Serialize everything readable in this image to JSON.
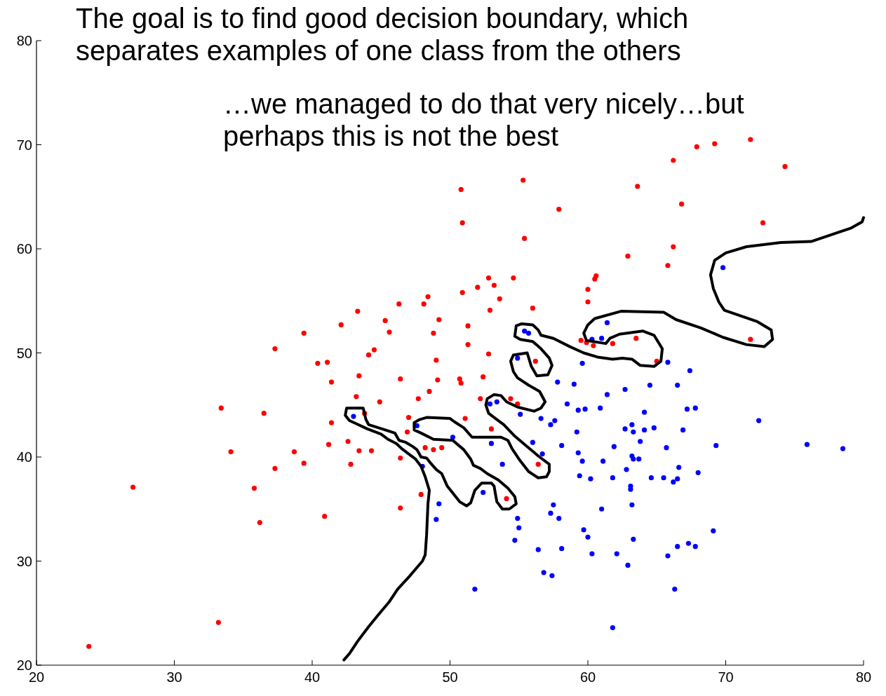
{
  "chart_data": {
    "type": "scatter",
    "marker": "circle",
    "grid": false,
    "xlim": [
      20,
      80
    ],
    "ylim": [
      20,
      80
    ],
    "xticks": [
      20,
      30,
      40,
      50,
      60,
      70,
      80
    ],
    "yticks": [
      20,
      30,
      40,
      50,
      60,
      70,
      80
    ],
    "annotations": [
      "The goal is to find good decision boundary, which separates examples of one class from the others",
      "…we managed to do that very nicely…but perhaps this is not the best"
    ],
    "series": [
      {
        "color": "#ff0000",
        "x": [
          23.8,
          27.0,
          33.2,
          33.4,
          34.1,
          35.8,
          36.2,
          36.5,
          37.3,
          37.3,
          38.7,
          39.4,
          39.4,
          40.4,
          40.9,
          41.1,
          41.2,
          41.4,
          41.4,
          42.1,
          42.6,
          42.8,
          43.2,
          43.3,
          43.4,
          43.4,
          43.8,
          44.1,
          44.3,
          44.5,
          44.9,
          45.3,
          45.6,
          46.3,
          46.4,
          46.4,
          46.4,
          47.0,
          46.9,
          47.7,
          47.9,
          48.1,
          48.2,
          48.4,
          48.5,
          48.8,
          48.8,
          49.0,
          49.1,
          49.2,
          49.4,
          50.7,
          50.8,
          50.8,
          50.9,
          50.9,
          51.3,
          51.3,
          51.1,
          52.0,
          52.2,
          52.4,
          52.8,
          52.8,
          52.9,
          53.0,
          53.2,
          53.6,
          54.4,
          54.6,
          54.9,
          54.1,
          55.3,
          55.4,
          56.0,
          56.2,
          56.4,
          57.9,
          59.5,
          59.9,
          60.4,
          61.8,
          63.5,
          65.0,
          60.0,
          60.0,
          60.5,
          60.6,
          62.9,
          65.8,
          66.2,
          72.7,
          66.8,
          63.6,
          66.2,
          67.9,
          69.2,
          71.8,
          74.3,
          71.8
        ],
        "values": [
          21.8,
          37.1,
          24.1,
          44.7,
          40.5,
          37.0,
          33.7,
          44.2,
          50.4,
          38.9,
          40.5,
          51.9,
          39.4,
          49.0,
          34.3,
          49.1,
          41.2,
          47.2,
          43.3,
          52.7,
          41.5,
          39.3,
          45.8,
          54.0,
          47.8,
          40.6,
          44.2,
          49.8,
          40.6,
          50.3,
          45.3,
          53.1,
          52.0,
          54.7,
          39.9,
          47.5,
          35.1,
          43.8,
          42.4,
          45.6,
          36.4,
          54.7,
          40.9,
          55.4,
          46.3,
          51.9,
          40.7,
          49.3,
          47.4,
          53.2,
          40.9,
          47.5,
          47.1,
          65.7,
          62.5,
          55.8,
          52.6,
          50.8,
          43.7,
          56.3,
          45.6,
          47.7,
          57.2,
          49.9,
          54.1,
          42.7,
          56.5,
          55.2,
          45.6,
          57.2,
          45.1,
          36.0,
          66.6,
          61.0,
          54.3,
          49.2,
          39.3,
          63.8,
          51.2,
          51.0,
          50.7,
          50.9,
          51.4,
          49.2,
          54.9,
          56.1,
          57.1,
          57.4,
          59.3,
          58.4,
          60.2,
          62.5,
          64.3,
          66.0,
          68.5,
          69.8,
          70.1,
          70.5,
          67.9,
          51.3
        ]
      },
      {
        "color": "#0000ff",
        "x": [
          54.9,
          59.6,
          65.8,
          67.4,
          57.8,
          59.0,
          62.7,
          64.5,
          66.5,
          61.4,
          58.5,
          59.3,
          59.8,
          60.9,
          64.1,
          67.2,
          67.8,
          55.1,
          56.6,
          57.6,
          57.3,
          59.2,
          62.7,
          63.2,
          63.3,
          64.1,
          64.8,
          66.9,
          72.4,
          63.8,
          56.0,
          58.1,
          61.9,
          65.7,
          69.3,
          75.9,
          78.5,
          56.7,
          59.3,
          59.6,
          61.1,
          63.2,
          63.3,
          63.7,
          62.8,
          66.6,
          68.0,
          59.4,
          60.2,
          61.8,
          64.6,
          65.5,
          66.5,
          66.2,
          63.1,
          63.1,
          57.5,
          63.2,
          61.0,
          57.3,
          54.9,
          57.9,
          55.0,
          59.7,
          69.1,
          60.0,
          63.3,
          54.7,
          66.5,
          67.3,
          67.8,
          58.1,
          56.4,
          60.3,
          62.1,
          65.8,
          62.9,
          56.8,
          57.4,
          66.3,
          51.8,
          61.8,
          43.0,
          47.6,
          50.2,
          52.9,
          53.4,
          53.0,
          53.8,
          48.0,
          52.4,
          49.2,
          49.0,
          55.4,
          55.7,
          61.4,
          60.3,
          61.0,
          69.8
        ],
        "values": [
          49.5,
          49.0,
          49.1,
          48.3,
          47.2,
          47.0,
          46.5,
          46.9,
          46.9,
          46.0,
          45.1,
          44.5,
          44.6,
          44.7,
          44.3,
          44.6,
          44.7,
          44.1,
          43.7,
          43.5,
          43.1,
          42.4,
          42.7,
          43.1,
          42.4,
          42.6,
          42.8,
          42.6,
          43.5,
          41.5,
          41.4,
          41.1,
          41.0,
          40.9,
          41.1,
          41.2,
          40.8,
          40.3,
          40.4,
          39.6,
          39.6,
          40.1,
          39.8,
          39.8,
          38.8,
          39.0,
          38.5,
          38.2,
          37.9,
          38.0,
          38.0,
          38.0,
          37.9,
          37.6,
          37.2,
          36.9,
          35.4,
          35.4,
          35.0,
          34.6,
          34.1,
          34.1,
          33.2,
          33.0,
          32.9,
          32.3,
          32.1,
          32.0,
          31.4,
          31.7,
          31.4,
          31.2,
          31.1,
          30.7,
          30.7,
          30.5,
          29.6,
          28.9,
          28.6,
          27.3,
          27.3,
          23.6,
          43.9,
          43.0,
          41.9,
          45.1,
          45.3,
          41.3,
          39.3,
          39.1,
          36.6,
          35.5,
          34.0,
          52.1,
          51.9,
          52.9,
          51.3,
          51.4,
          58.2
        ]
      },
      {
        "type": "line",
        "color": "#000000",
        "marker": "none",
        "x": [
          42.3,
          42.7,
          43.3,
          44.1,
          44.9,
          45.6,
          46.2,
          47.1,
          48.0,
          48.2,
          48.3,
          48.4,
          48.5,
          48.2,
          47.9,
          47.5,
          47.1,
          46.5,
          46.1,
          45.5,
          45.0,
          44.0,
          43.2,
          42.7,
          42.4,
          42.5,
          43.7,
          43.9,
          44.1,
          45.3,
          46.0,
          46.3,
          46.8,
          47.3,
          47.6,
          47.9,
          48.3,
          48.6,
          49.0,
          49.4,
          49.8,
          50.7,
          51.2,
          51.5,
          51.8,
          52.3,
          53.0,
          53.2,
          53.3,
          53.4,
          53.8,
          54.3,
          54.8,
          54.7,
          54.2,
          53.5,
          52.7,
          52.2,
          51.7,
          51.5,
          51.0,
          50.2,
          48.8,
          47.9,
          47.4,
          47.4,
          47.8,
          48.3,
          50.0,
          50.3,
          51.0,
          51.6,
          53.7,
          54.2,
          54.5,
          55.0,
          55.7,
          56.4,
          57.0,
          57.2,
          57.2,
          56.4,
          55.6,
          54.7,
          53.9,
          53.3,
          52.8,
          52.6,
          52.7,
          53.2,
          53.7,
          54.1,
          54.9,
          56.1,
          56.6,
          56.9,
          56.5,
          55.7,
          54.9,
          54.6,
          54.4,
          54.6,
          55.6,
          55.9,
          56.3,
          57.1,
          57.4,
          57.2,
          56.6,
          56.0,
          55.1,
          54.7,
          54.8,
          55.2,
          56.0,
          56.4,
          56.6,
          57.5,
          58.7,
          59.7,
          60.7,
          61.8,
          62.5,
          63.2,
          63.8,
          64.8,
          65.3,
          65.4,
          64.8,
          64.0,
          62.3,
          61.6,
          61.3,
          59.9,
          59.7,
          60.0,
          60.5,
          62.4,
          65.5,
          66.4,
          68.2,
          69.8,
          71.5,
          72.8,
          73.4,
          73.3,
          72.3,
          69.9,
          69.5,
          69.1,
          68.9,
          69.2,
          70.0,
          71.5,
          74.0,
          76.2,
          78.0,
          79.1,
          79.9,
          80
        ],
        "values": [
          20.5,
          21.1,
          22.3,
          23.7,
          25.0,
          26.1,
          27.3,
          28.6,
          30.0,
          30.6,
          32.5,
          35.5,
          36.8,
          38.1,
          39.1,
          39.8,
          40.2,
          40.8,
          41.3,
          41.7,
          42.2,
          42.7,
          43.2,
          43.5,
          44.0,
          44.7,
          44.7,
          43.6,
          43.1,
          42.6,
          42.3,
          41.6,
          41.4,
          41.0,
          40.7,
          40.0,
          39.9,
          39.4,
          38.8,
          38.4,
          37.2,
          35.7,
          35.3,
          35.6,
          36.8,
          37.5,
          37.5,
          37.2,
          36.4,
          35.7,
          35.0,
          35.0,
          35.5,
          36.2,
          37.0,
          37.8,
          38.4,
          38.9,
          39.2,
          39.8,
          40.7,
          41.6,
          41.7,
          42.3,
          42.6,
          43.3,
          43.6,
          43.8,
          43.7,
          43.4,
          42.8,
          41.9,
          41.9,
          41.6,
          40.8,
          39.8,
          38.6,
          38.0,
          38.1,
          38.6,
          39.3,
          40.1,
          41.0,
          42.0,
          43.1,
          43.7,
          44.2,
          45.0,
          45.6,
          46.0,
          45.9,
          45.3,
          44.8,
          44.4,
          44.7,
          45.3,
          46.3,
          46.9,
          47.6,
          48.2,
          49.2,
          49.8,
          50.0,
          48.7,
          47.8,
          47.9,
          48.8,
          49.5,
          50.4,
          51.1,
          51.3,
          51.6,
          52.6,
          52.8,
          52.7,
          52.2,
          51.7,
          51.4,
          50.6,
          50.0,
          49.6,
          49.4,
          49.5,
          49.4,
          48.8,
          48.7,
          49.2,
          50.4,
          51.7,
          52.1,
          51.8,
          51.4,
          50.9,
          51.2,
          51.9,
          52.7,
          53.3,
          54.0,
          53.9,
          53.2,
          52.4,
          51.5,
          50.8,
          50.6,
          51.3,
          52.2,
          53.0,
          54.1,
          54.9,
          56.2,
          57.5,
          58.9,
          59.6,
          60.2,
          60.6,
          60.7,
          61.5,
          62.0,
          62.6,
          63.0
        ]
      }
    ]
  }
}
